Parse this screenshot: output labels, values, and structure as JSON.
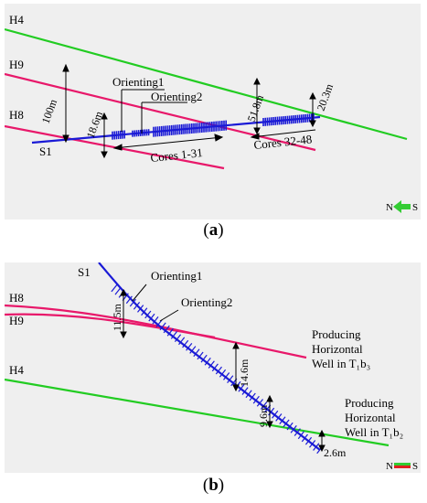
{
  "panel_a": {
    "caption_letter": "a",
    "horizons": [
      "H4",
      "H9",
      "H8"
    ],
    "well": "S1",
    "orienting_1": "Orienting1",
    "orienting_2": "Orienting2",
    "cores_1": "Cores 1-31",
    "cores_2": "Cores 32-48",
    "dist_100": "100m",
    "dist_18_6": "18.6m",
    "dist_51_8": "51.8m",
    "dist_20_3": "20.3m",
    "compass_n": "N",
    "compass_s": "S"
  },
  "panel_b": {
    "caption_letter": "b",
    "horizons": [
      "H8",
      "H9",
      "H4"
    ],
    "well": "S1",
    "orienting_1": "Orienting1",
    "orienting_2": "Orienting2",
    "dist_11_5": "11.5m",
    "dist_14_6": "14.6m",
    "dist_9_6": "9.6m",
    "dist_2_6": "2.6m",
    "producing_1": [
      "Producing",
      "Horizontal",
      "Well in T₁b₃"
    ],
    "producing_2": [
      "Producing",
      "Horizontal",
      "Well in T₁b₂"
    ],
    "compass_n": "N",
    "compass_s": "S"
  },
  "colors": {
    "green": "#22cc22",
    "pink": "#e8186a",
    "blue": "#1a1ad6",
    "arrow_green": "#33cc33",
    "red": "#e02020"
  }
}
